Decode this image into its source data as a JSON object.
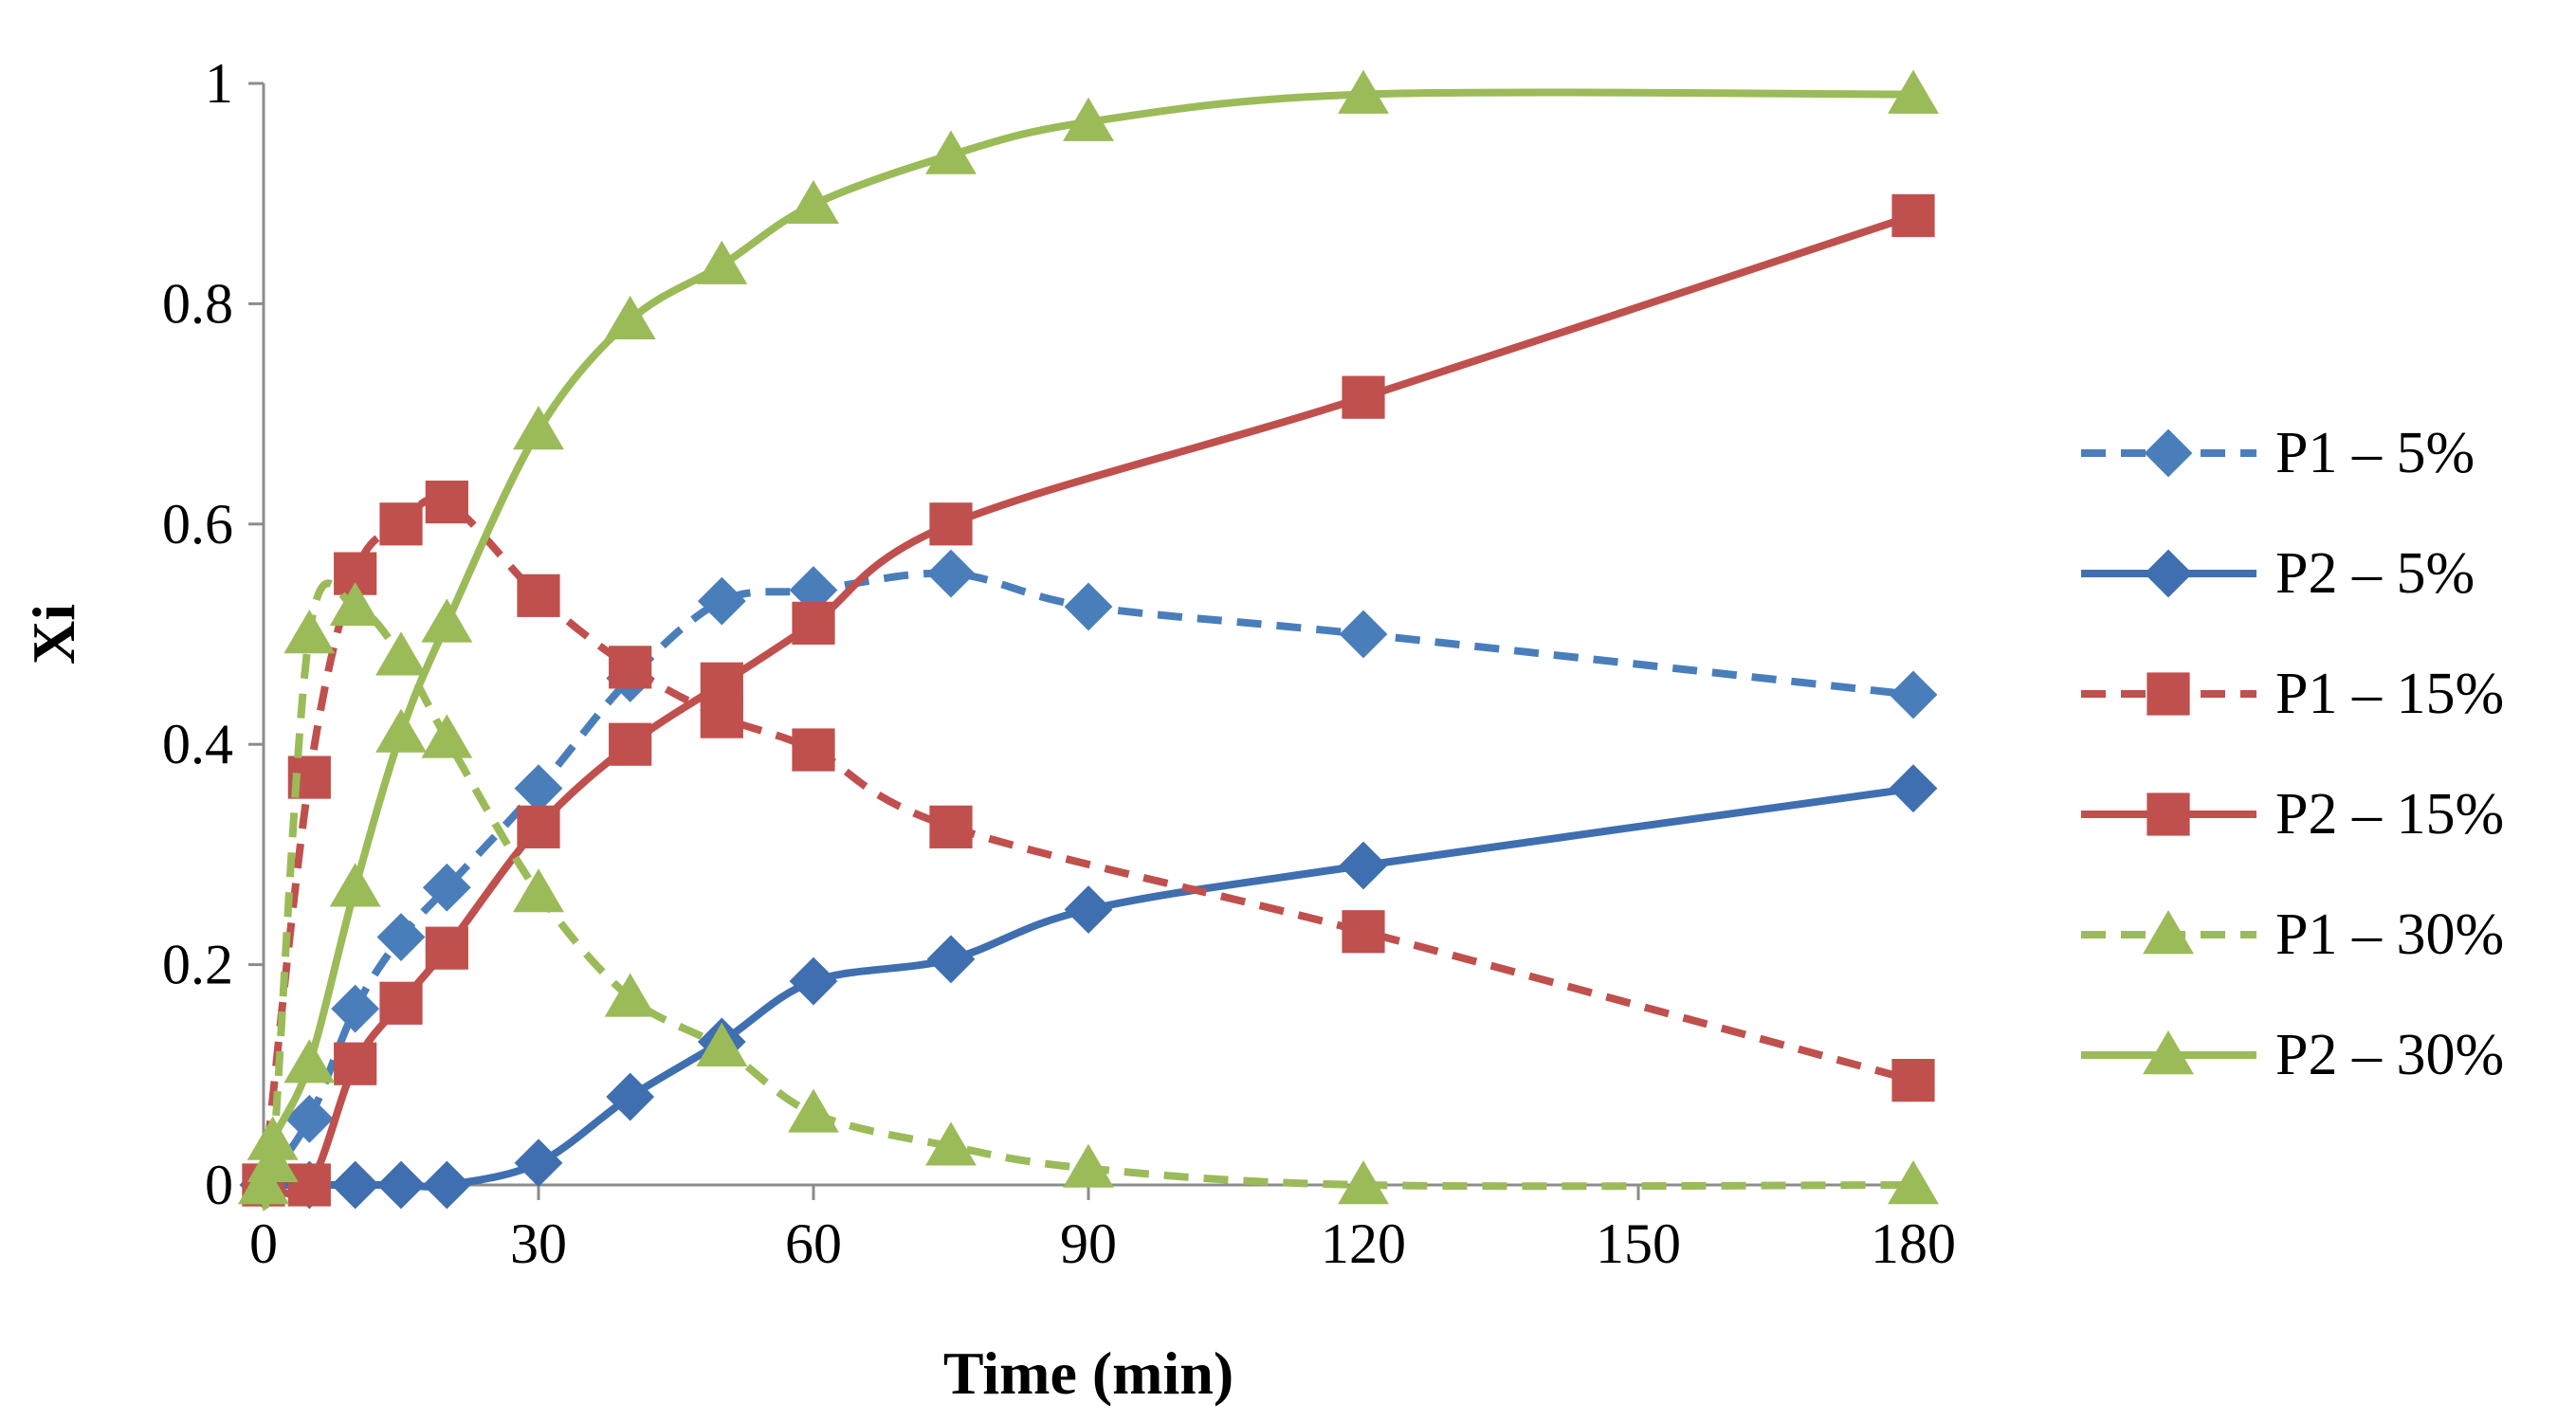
{
  "chart_data": {
    "type": "line",
    "title": "",
    "xlabel": "Time (min)",
    "ylabel": "Xi",
    "xlim": [
      0,
      180
    ],
    "ylim": [
      0,
      1
    ],
    "xticks": [
      0,
      30,
      60,
      90,
      120,
      150,
      180
    ],
    "xtick_labels": [
      "0",
      "30",
      "60",
      "90",
      "120",
      "150",
      "180"
    ],
    "yticks": [
      0,
      0.2,
      0.4,
      0.6,
      0.8,
      1
    ],
    "ytick_labels": [
      "0",
      "0.2",
      "0.4",
      "0.6",
      "0.8",
      "1"
    ],
    "grid": false,
    "legend_position": "right",
    "series": [
      {
        "name": "P1 – 5%",
        "color": "#4a7ebb",
        "dash": "dashed",
        "marker": "diamond",
        "x": [
          0,
          5,
          10,
          15,
          20,
          30,
          40,
          50,
          60,
          75,
          90,
          120,
          180
        ],
        "y": [
          0,
          0.06,
          0.16,
          0.225,
          0.27,
          0.36,
          0.46,
          0.53,
          0.54,
          0.555,
          0.525,
          0.5,
          0.445
        ]
      },
      {
        "name": "P2 – 5%",
        "color": "#3f6fb0",
        "dash": "solid",
        "marker": "diamond",
        "x": [
          0,
          5,
          10,
          15,
          20,
          30,
          40,
          50,
          60,
          75,
          90,
          120,
          180
        ],
        "y": [
          0,
          0,
          0,
          0,
          0,
          0.02,
          0.08,
          0.13,
          0.185,
          0.205,
          0.25,
          0.29,
          0.36
        ]
      },
      {
        "name": "P1 – 15%",
        "color": "#c0504d",
        "dash": "dashed",
        "marker": "square",
        "x": [
          0,
          5,
          10,
          15,
          20,
          30,
          40,
          50,
          60,
          75,
          120,
          180
        ],
        "y": [
          0,
          0.37,
          0.555,
          0.6,
          0.62,
          0.535,
          0.47,
          0.425,
          0.395,
          0.325,
          0.23,
          0.095
        ]
      },
      {
        "name": "P2 – 15%",
        "color": "#c0504d",
        "dash": "solid",
        "marker": "square",
        "x": [
          0,
          5,
          10,
          15,
          20,
          30,
          40,
          50,
          60,
          75,
          120,
          180
        ],
        "y": [
          0,
          0,
          0.11,
          0.165,
          0.215,
          0.325,
          0.4,
          0.455,
          0.51,
          0.6,
          0.715,
          0.88
        ]
      },
      {
        "name": "P1 – 30%",
        "color": "#9bbb59",
        "dash": "dashed",
        "marker": "triangle",
        "x": [
          0,
          1,
          5,
          10,
          15,
          20,
          30,
          40,
          50,
          60,
          75,
          90,
          120,
          180
        ],
        "y": [
          0,
          0.02,
          0.5,
          0.525,
          0.48,
          0.405,
          0.265,
          0.17,
          0.125,
          0.065,
          0.035,
          0.015,
          0,
          0
        ]
      },
      {
        "name": "P2 – 30%",
        "color": "#9bbb59",
        "dash": "solid",
        "marker": "triangle",
        "x": [
          0,
          1,
          5,
          10,
          15,
          20,
          30,
          40,
          50,
          60,
          75,
          90,
          120,
          180
        ],
        "y": [
          0,
          0.04,
          0.11,
          0.27,
          0.41,
          0.51,
          0.685,
          0.785,
          0.835,
          0.89,
          0.935,
          0.965,
          0.99,
          0.99
        ]
      }
    ]
  }
}
